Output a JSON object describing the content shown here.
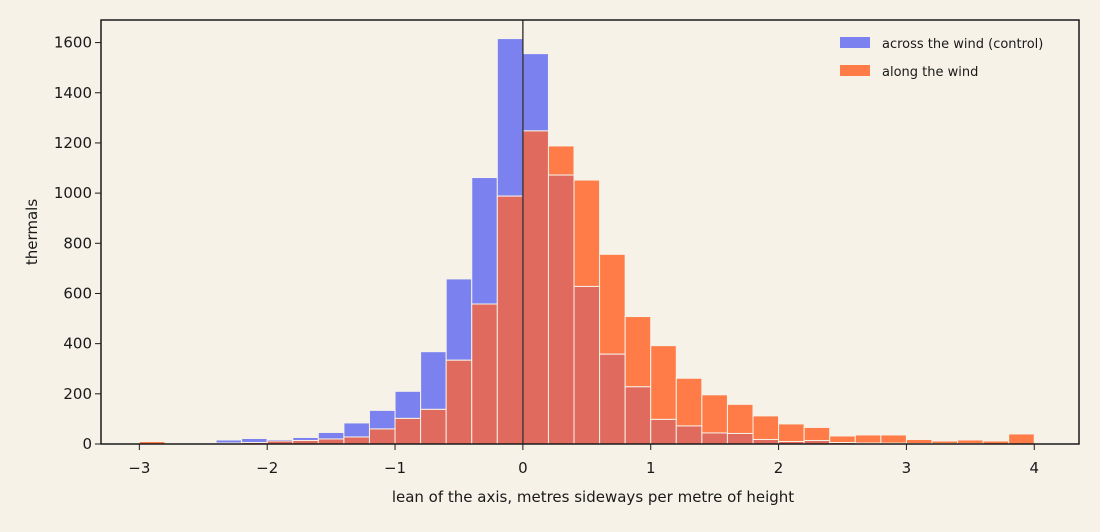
{
  "chart_data": {
    "type": "bar",
    "subtype": "overlapping-histogram",
    "title": "",
    "xlabel": "lean of the axis, metres sideways per metre of height",
    "ylabel": "thermals",
    "xlim": [
      -3.3,
      4.35
    ],
    "ylim": [
      0,
      1690
    ],
    "xticks": [
      -3,
      -2,
      -1,
      0,
      1,
      2,
      3,
      4
    ],
    "xtick_labels": [
      "−3",
      "−2",
      "−1",
      "0",
      "1",
      "2",
      "3",
      "4"
    ],
    "yticks": [
      0,
      200,
      400,
      600,
      800,
      1000,
      1200,
      1400,
      1600
    ],
    "ytick_labels": [
      "0",
      "200",
      "400",
      "600",
      "800",
      "1000",
      "1200",
      "1400",
      "1600"
    ],
    "grid": false,
    "legend_position": "top-right",
    "reference_line_x": 0,
    "bin_width": 0.2,
    "bin_left_edges": [
      -3.0,
      -2.8,
      -2.6,
      -2.4,
      -2.2,
      -2.0,
      -1.8,
      -1.6,
      -1.4,
      -1.2,
      -1.0,
      -0.8,
      -0.6,
      -0.4,
      -0.2,
      0.0,
      0.2,
      0.4,
      0.6,
      0.8,
      1.0,
      1.2,
      1.4,
      1.6,
      1.8,
      2.0,
      2.2,
      2.4,
      2.6,
      2.8,
      3.0,
      3.2,
      3.4,
      3.6,
      3.8
    ],
    "series": [
      {
        "name": "across the wind (control)",
        "color": "#7b82f0",
        "values": [
          0,
          4,
          6,
          16,
          22,
          18,
          26,
          46,
          84,
          134,
          210,
          368,
          658,
          1062,
          1616,
          1556,
          1072,
          628,
          358,
          228,
          98,
          72,
          44,
          42,
          18,
          10,
          14,
          6,
          4,
          3,
          2,
          1,
          1,
          0,
          0
        ]
      },
      {
        "name": "along the wind",
        "color": "#ff7b47",
        "values": [
          10,
          2,
          2,
          4,
          6,
          12,
          14,
          20,
          28,
          60,
          102,
          138,
          334,
          558,
          988,
          1248,
          1188,
          1052,
          756,
          508,
          392,
          262,
          196,
          158,
          112,
          80,
          66,
          32,
          36,
          36,
          18,
          12,
          16,
          12,
          40
        ]
      }
    ],
    "overlap_color": "#e06a5e"
  }
}
